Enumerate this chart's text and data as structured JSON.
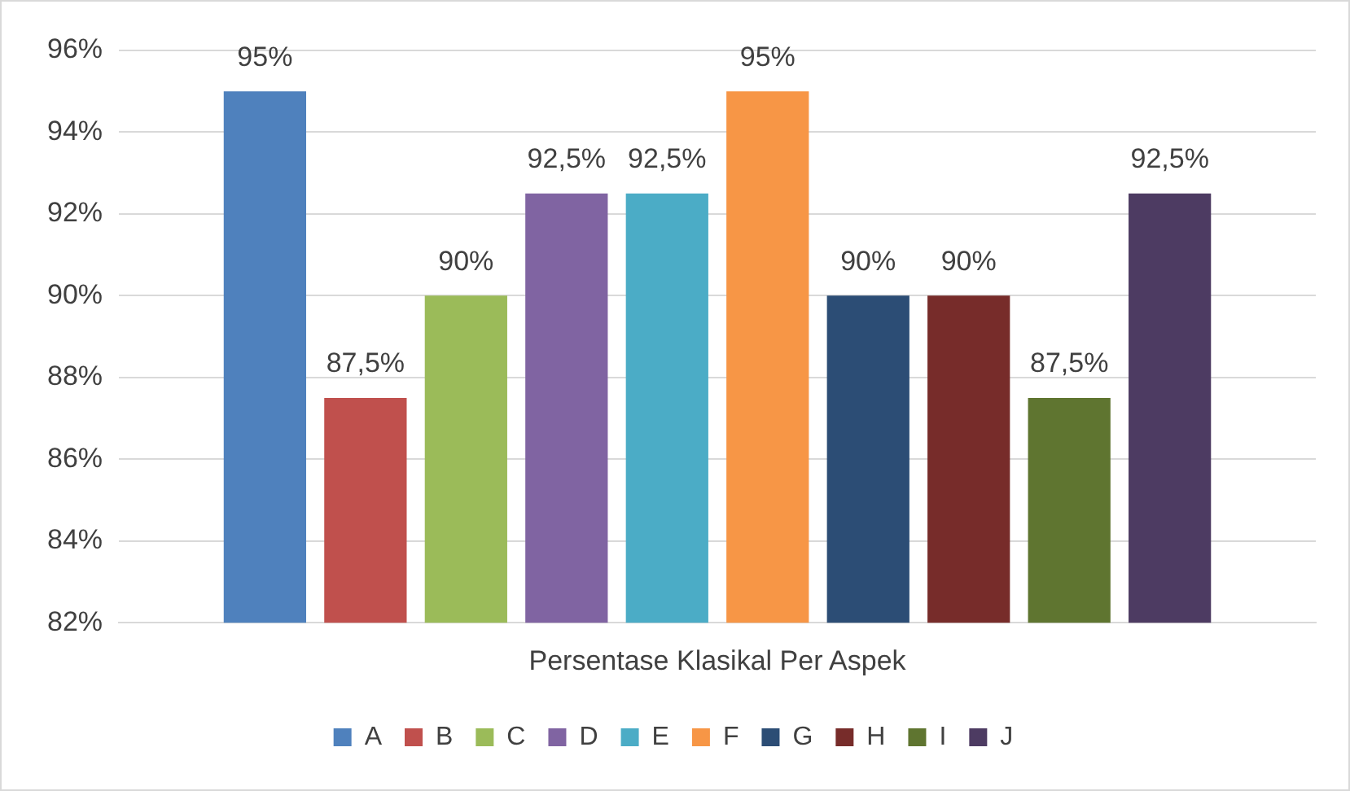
{
  "chart_data": {
    "type": "bar",
    "categories": [
      "Persentase Klasikal Per Aspek"
    ],
    "series": [
      {
        "name": "A",
        "color": "#4f81bd",
        "values": [
          95
        ],
        "value_labels": [
          "95%"
        ]
      },
      {
        "name": "B",
        "color": "#c0504d",
        "values": [
          87.5
        ],
        "value_labels": [
          "87,5%"
        ]
      },
      {
        "name": "C",
        "color": "#9bbb59",
        "values": [
          90
        ],
        "value_labels": [
          "90%"
        ]
      },
      {
        "name": "D",
        "color": "#8064a2",
        "values": [
          92.5
        ],
        "value_labels": [
          "92,5%"
        ]
      },
      {
        "name": "E",
        "color": "#4bacc6",
        "values": [
          92.5
        ],
        "value_labels": [
          "92,5%"
        ]
      },
      {
        "name": "F",
        "color": "#f79646",
        "values": [
          95
        ],
        "value_labels": [
          "95%"
        ]
      },
      {
        "name": "G",
        "color": "#2c4d75",
        "values": [
          90
        ],
        "value_labels": [
          "90%"
        ]
      },
      {
        "name": "H",
        "color": "#772c2a",
        "values": [
          90
        ],
        "value_labels": [
          "90%"
        ]
      },
      {
        "name": "I",
        "color": "#5f7530",
        "values": [
          87.5
        ],
        "value_labels": [
          "87,5%"
        ]
      },
      {
        "name": "J",
        "color": "#4d3b62",
        "values": [
          92.5
        ],
        "value_labels": [
          "92,5%"
        ]
      }
    ],
    "ylim": [
      82,
      96
    ],
    "yticks": [
      {
        "value": 82,
        "label": "82%"
      },
      {
        "value": 84,
        "label": "84%"
      },
      {
        "value": 86,
        "label": "86%"
      },
      {
        "value": 88,
        "label": "88%"
      },
      {
        "value": 90,
        "label": "90%"
      },
      {
        "value": 92,
        "label": "92%"
      },
      {
        "value": 94,
        "label": "94%"
      },
      {
        "value": 96,
        "label": "96%"
      }
    ],
    "grid": "y",
    "legend": "bottom"
  }
}
